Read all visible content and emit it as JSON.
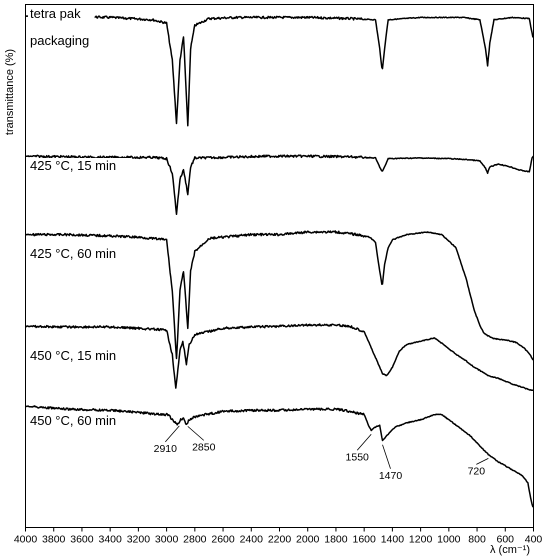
{
  "chart_data": {
    "type": "line",
    "xlabel": "λ (cm⁻¹)",
    "ylabel": "transmittance  (%)",
    "xlim": [
      4000,
      400
    ],
    "x_reversed": true,
    "grid": false,
    "x_ticks": [
      4000,
      3800,
      3600,
      3400,
      3200,
      3000,
      2800,
      2600,
      2400,
      2200,
      2000,
      1800,
      1600,
      1400,
      1200,
      1000,
      800,
      600,
      400
    ],
    "x_tick_labels": [
      "4000",
      "3800",
      "3600",
      "3400",
      "3200",
      "3000",
      "2800",
      "2600",
      "2400",
      "2200",
      "2000",
      "1800",
      "1600",
      "1400",
      "1200",
      "1000",
      "800",
      "600",
      "400"
    ],
    "series": [
      {
        "name": "tetra pak packaging",
        "label_lines": [
          "tetra pak",
          "packaging"
        ],
        "points": [
          [
            4000,
            0.02
          ],
          [
            3700,
            0.02
          ],
          [
            3400,
            0.03
          ],
          [
            3100,
            0.05
          ],
          [
            3000,
            0.08
          ],
          [
            2960,
            0.4
          ],
          [
            2930,
            0.95
          ],
          [
            2905,
            0.4
          ],
          [
            2880,
            0.2
          ],
          [
            2850,
            0.98
          ],
          [
            2830,
            0.3
          ],
          [
            2800,
            0.1
          ],
          [
            2700,
            0.04
          ],
          [
            2500,
            0.03
          ],
          [
            2200,
            0.03
          ],
          [
            2000,
            0.03
          ],
          [
            1700,
            0.04
          ],
          [
            1520,
            0.05
          ],
          [
            1490,
            0.3
          ],
          [
            1472,
            0.5
          ],
          [
            1455,
            0.3
          ],
          [
            1430,
            0.05
          ],
          [
            1200,
            0.03
          ],
          [
            900,
            0.03
          ],
          [
            780,
            0.05
          ],
          [
            740,
            0.3
          ],
          [
            725,
            0.45
          ],
          [
            710,
            0.25
          ],
          [
            680,
            0.05
          ],
          [
            550,
            0.03
          ],
          [
            430,
            0.04
          ],
          [
            405,
            0.2
          ]
        ]
      },
      {
        "name": "425 °C, 15 min",
        "label_lines": [
          "425 °C, 15 min"
        ],
        "points": [
          [
            4000,
            0.02
          ],
          [
            3700,
            0.03
          ],
          [
            3400,
            0.04
          ],
          [
            3100,
            0.04
          ],
          [
            3000,
            0.06
          ],
          [
            2960,
            0.3
          ],
          [
            2930,
            0.98
          ],
          [
            2905,
            0.4
          ],
          [
            2880,
            0.25
          ],
          [
            2850,
            0.65
          ],
          [
            2830,
            0.2
          ],
          [
            2800,
            0.05
          ],
          [
            2600,
            0.04
          ],
          [
            2300,
            0.02
          ],
          [
            2000,
            0.02
          ],
          [
            1700,
            0.03
          ],
          [
            1520,
            0.05
          ],
          [
            1490,
            0.2
          ],
          [
            1472,
            0.28
          ],
          [
            1455,
            0.2
          ],
          [
            1430,
            0.06
          ],
          [
            1200,
            0.05
          ],
          [
            1000,
            0.06
          ],
          [
            850,
            0.08
          ],
          [
            780,
            0.1
          ],
          [
            740,
            0.22
          ],
          [
            725,
            0.3
          ],
          [
            710,
            0.2
          ],
          [
            650,
            0.15
          ],
          [
            560,
            0.2
          ],
          [
            500,
            0.25
          ],
          [
            430,
            0.28
          ],
          [
            410,
            0.05
          ],
          [
            403,
            0.02
          ]
        ]
      },
      {
        "name": "425 °C, 60 min",
        "label_lines": [
          "425 °C, 60 min"
        ],
        "points": [
          [
            4000,
            0.02
          ],
          [
            3700,
            0.02
          ],
          [
            3400,
            0.03
          ],
          [
            3200,
            0.04
          ],
          [
            3000,
            0.06
          ],
          [
            2960,
            0.45
          ],
          [
            2930,
            0.98
          ],
          [
            2905,
            0.45
          ],
          [
            2880,
            0.3
          ],
          [
            2850,
            0.75
          ],
          [
            2830,
            0.3
          ],
          [
            2800,
            0.15
          ],
          [
            2700,
            0.05
          ],
          [
            2400,
            0.02
          ],
          [
            2200,
            0.02
          ],
          [
            2000,
            0.0
          ],
          [
            1800,
            0.0
          ],
          [
            1650,
            0.02
          ],
          [
            1560,
            0.04
          ],
          [
            1520,
            0.08
          ],
          [
            1490,
            0.3
          ],
          [
            1472,
            0.42
          ],
          [
            1455,
            0.25
          ],
          [
            1430,
            0.12
          ],
          [
            1400,
            0.06
          ],
          [
            1300,
            0.02
          ],
          [
            1150,
            0.0
          ],
          [
            1050,
            0.02
          ],
          [
            950,
            0.12
          ],
          [
            880,
            0.35
          ],
          [
            820,
            0.6
          ],
          [
            780,
            0.72
          ],
          [
            750,
            0.78
          ],
          [
            720,
            0.8
          ],
          [
            680,
            0.82
          ],
          [
            600,
            0.83
          ],
          [
            520,
            0.85
          ],
          [
            460,
            0.9
          ],
          [
            420,
            0.95
          ],
          [
            405,
            0.98
          ]
        ]
      },
      {
        "name": "450 °C, 15 min",
        "label_lines": [
          "450 °C, 15 min"
        ],
        "points": [
          [
            4000,
            0.02
          ],
          [
            3700,
            0.03
          ],
          [
            3400,
            0.03
          ],
          [
            3200,
            0.05
          ],
          [
            3000,
            0.08
          ],
          [
            2960,
            0.45
          ],
          [
            2935,
            0.98
          ],
          [
            2905,
            0.4
          ],
          [
            2885,
            0.25
          ],
          [
            2860,
            0.6
          ],
          [
            2840,
            0.3
          ],
          [
            2800,
            0.15
          ],
          [
            2600,
            0.05
          ],
          [
            2400,
            0.03
          ],
          [
            2200,
            0.02
          ],
          [
            2000,
            0.0
          ],
          [
            1800,
            0.0
          ],
          [
            1700,
            0.02
          ],
          [
            1600,
            0.1
          ],
          [
            1550,
            0.35
          ],
          [
            1500,
            0.6
          ],
          [
            1470,
            0.75
          ],
          [
            1440,
            0.78
          ],
          [
            1400,
            0.65
          ],
          [
            1350,
            0.4
          ],
          [
            1300,
            0.3
          ],
          [
            1200,
            0.25
          ],
          [
            1100,
            0.2
          ],
          [
            1050,
            0.28
          ],
          [
            950,
            0.45
          ],
          [
            880,
            0.55
          ],
          [
            820,
            0.65
          ],
          [
            780,
            0.7
          ],
          [
            720,
            0.78
          ],
          [
            650,
            0.82
          ],
          [
            560,
            0.9
          ],
          [
            480,
            0.96
          ],
          [
            420,
            1.0
          ]
        ]
      },
      {
        "name": "450 °C, 60 min",
        "label_lines": [
          "450 °C, 60 min"
        ],
        "points": [
          [
            4000,
            0.02
          ],
          [
            3700,
            0.05
          ],
          [
            3400,
            0.06
          ],
          [
            3200,
            0.08
          ],
          [
            3050,
            0.1
          ],
          [
            2990,
            0.1
          ],
          [
            2960,
            0.15
          ],
          [
            2925,
            0.2
          ],
          [
            2900,
            0.15
          ],
          [
            2880,
            0.13
          ],
          [
            2860,
            0.2
          ],
          [
            2840,
            0.15
          ],
          [
            2800,
            0.12
          ],
          [
            2600,
            0.07
          ],
          [
            2400,
            0.06
          ],
          [
            2200,
            0.06
          ],
          [
            2000,
            0.05
          ],
          [
            1800,
            0.05
          ],
          [
            1700,
            0.07
          ],
          [
            1600,
            0.1
          ],
          [
            1570,
            0.2
          ],
          [
            1550,
            0.25
          ],
          [
            1520,
            0.22
          ],
          [
            1490,
            0.2
          ],
          [
            1470,
            0.35
          ],
          [
            1440,
            0.3
          ],
          [
            1380,
            0.22
          ],
          [
            1300,
            0.18
          ],
          [
            1200,
            0.15
          ],
          [
            1100,
            0.1
          ],
          [
            1050,
            0.1
          ],
          [
            950,
            0.2
          ],
          [
            850,
            0.3
          ],
          [
            780,
            0.4
          ],
          [
            720,
            0.48
          ],
          [
            650,
            0.55
          ],
          [
            560,
            0.62
          ],
          [
            480,
            0.68
          ],
          [
            440,
            0.75
          ],
          [
            420,
            0.9
          ],
          [
            405,
            0.98
          ]
        ]
      }
    ],
    "annotations": [
      {
        "text": "2910",
        "x": 2910,
        "series": 4
      },
      {
        "text": "2850",
        "x": 2850,
        "series": 4
      },
      {
        "text": "1550",
        "x": 1550,
        "series": 4
      },
      {
        "text": "1470",
        "x": 1470,
        "series": 4
      },
      {
        "text": "720",
        "x": 720,
        "series": 4
      }
    ]
  }
}
